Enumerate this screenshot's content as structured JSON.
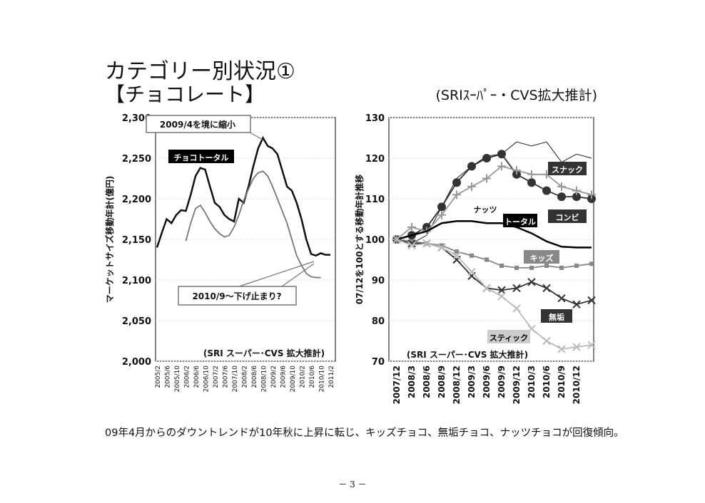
{
  "title": "カテゴリー別状況①",
  "subtitle": "【チョコレート】",
  "source": "(SRIｽｰﾊﾟｰ・CVS拡大推計)",
  "caption": "09年4月からのダウントレンドが10年秋に上昇に転じ、キッズチョコ、無垢チョコ、ナッツチョコが回復傾向。",
  "page_number": "－ 3 －",
  "chart_data": [
    {
      "type": "line",
      "ylabel": "マーケットサイズ移動年計(億円)",
      "ylim": [
        2000,
        2300
      ],
      "yticks": [
        {
          "value": 2000,
          "label": "2,000"
        },
        {
          "value": 2050,
          "label": "2,050"
        },
        {
          "value": 2100,
          "label": "2,100"
        },
        {
          "value": 2150,
          "label": "2,150"
        },
        {
          "value": 2200,
          "label": "2,200"
        },
        {
          "value": 2250,
          "label": "2,250"
        },
        {
          "value": 2300,
          "label": "2,300"
        }
      ],
      "categories": [
        "2005/2",
        null,
        "2005/6",
        null,
        "2005/10",
        null,
        "2006/2",
        null,
        "2006/6",
        null,
        "2006/10",
        null,
        "2007/2",
        null,
        "2007/6",
        null,
        "2007/10",
        null,
        "2008/2",
        null,
        "2008/6",
        null,
        "2008/10",
        null,
        "2009/2",
        null,
        "2009/6",
        null,
        "2009/10",
        null,
        "2010/2",
        null,
        "2010/6",
        null,
        "2010/10",
        null,
        "2011/2"
      ],
      "series": [
        {
          "name": "チョコトータル",
          "color": "#111111",
          "values": [
            2140,
            2158,
            2175,
            2170,
            2180,
            2186,
            2185,
            2205,
            2228,
            2238,
            2236,
            2215,
            2195,
            2190,
            2180,
            2175,
            2172,
            2200,
            2195,
            2215,
            2240,
            2262,
            2275,
            2265,
            2262,
            2255,
            2235,
            2215,
            2210,
            2195,
            2175,
            2150,
            2132,
            2130,
            2133,
            2131,
            2131
          ]
        },
        {
          "color": "#777777",
          "values": [
            null,
            null,
            null,
            null,
            null,
            null,
            2148,
            2170,
            2188,
            2192,
            2183,
            2172,
            2163,
            2157,
            2153,
            2155,
            2165,
            2180,
            2198,
            2212,
            2225,
            2232,
            2234,
            2228,
            2215,
            2200,
            2185,
            2170,
            2150,
            2130,
            2118,
            2108,
            2104,
            2103,
            2103,
            null,
            null
          ]
        }
      ],
      "annotations": [
        "2009/4を境に縮小",
        "2010/9～下げ止まり?",
        "(SRI スーパー･CVS 拡大推計)"
      ]
    },
    {
      "type": "line",
      "ylabel": "07/12を100とする移動年計推移",
      "ylim": [
        70,
        130
      ],
      "yticks": [
        70,
        80,
        90,
        100,
        110,
        120,
        130
      ],
      "categories": [
        "2007/12",
        "2008/3",
        "2008/6",
        "2008/9",
        "2008/12",
        "2009/3",
        "2009/6",
        "2009/9",
        "2009/12",
        "2010/3",
        "2010/6",
        "2010/9",
        "2010/12",
        null
      ],
      "series": [
        {
          "name": "スナック",
          "color": "#222222",
          "marker": "none",
          "values": [
            100,
            99,
            101,
            108,
            115,
            118,
            120.5,
            121,
            124,
            123,
            124,
            119,
            121,
            120
          ]
        },
        {
          "name": "コンビ",
          "color": "#333333",
          "marker": "circle",
          "values": [
            100,
            101,
            103,
            108,
            114,
            118,
            120,
            121,
            116,
            114,
            112,
            110.5,
            110.5,
            110
          ]
        },
        {
          "name": "ナッツ",
          "color": "#999999",
          "marker": "plus",
          "values": [
            100,
            103,
            102,
            106,
            111,
            113,
            115,
            118,
            117,
            116,
            116,
            113,
            112,
            111
          ]
        },
        {
          "name": "トータル",
          "color": "#000000",
          "marker": "none",
          "values": [
            100,
            101,
            102,
            104,
            104.5,
            104.5,
            104,
            104,
            103,
            101.5,
            99.5,
            98.2,
            98,
            98
          ]
        },
        {
          "name": "キッズ",
          "color": "#888888",
          "marker": "square",
          "values": [
            100,
            99.5,
            99,
            98.5,
            97,
            96,
            95,
            93.5,
            93,
            93,
            93.5,
            93,
            93.5,
            94
          ]
        },
        {
          "name": "無垢",
          "color": "#333333",
          "marker": "x",
          "values": [
            100,
            99,
            99,
            98,
            95,
            91,
            88,
            87.5,
            88,
            89.5,
            88,
            85.5,
            84,
            85
          ]
        },
        {
          "name": "スティック",
          "color": "#bbbbbb",
          "marker": "x",
          "values": [
            100,
            98.5,
            99,
            98,
            96,
            92,
            88,
            86,
            83,
            78,
            75,
            73,
            73.5,
            74
          ]
        }
      ],
      "annotations": [
        "(SRI スーパー･CVS 拡大推計)"
      ]
    }
  ]
}
